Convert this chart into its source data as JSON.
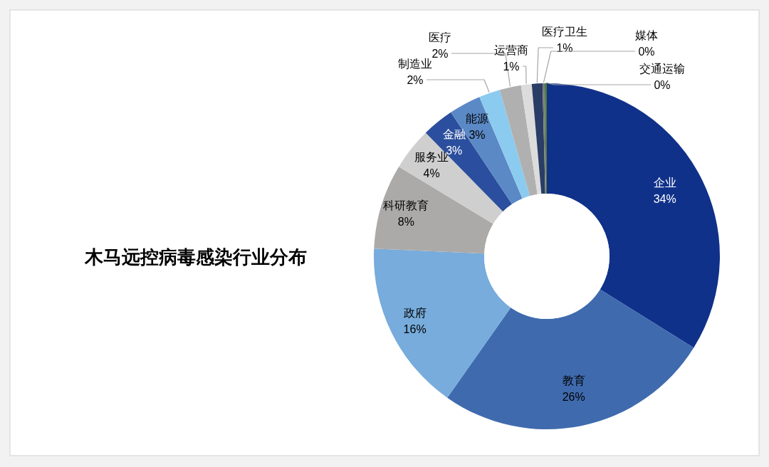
{
  "chart_data": {
    "type": "donut",
    "title": "木马远控病毒感染行业分布",
    "categories": [
      "企业",
      "教育",
      "政府",
      "科研教育",
      "服务业",
      "金融",
      "能源",
      "制造业",
      "医疗",
      "运营商",
      "医疗卫生",
      "媒体",
      "交通运输"
    ],
    "values": [
      34,
      26,
      16,
      8,
      4,
      3,
      3,
      2,
      2,
      1,
      1,
      0.2,
      0.2
    ],
    "value_labels": [
      "34%",
      "26%",
      "16%",
      "8%",
      "4%",
      "3%",
      "3%",
      "2%",
      "2%",
      "1%",
      "1%",
      "0%",
      "0%"
    ],
    "colors": [
      "#10318a",
      "#3f6aae",
      "#77acdc",
      "#acaaa8",
      "#cfcfcf",
      "#2b4f9e",
      "#5b89c6",
      "#8ccbf0",
      "#b0b0b0",
      "#dcdcdc",
      "#2a3d66",
      "#7a7a7a",
      "#4a7a3a"
    ]
  }
}
